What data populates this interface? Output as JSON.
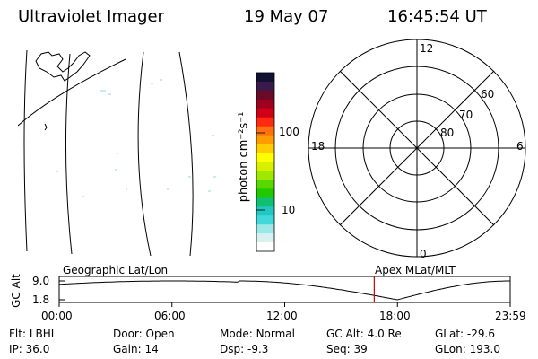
{
  "header": {
    "title": "Ultraviolet Imager",
    "date": "19 May 07",
    "time": "16:45:54 UT"
  },
  "colorbar": {
    "unit": "photon cm⁻²s⁻¹",
    "tick_labels": [
      "100",
      "10"
    ],
    "colors": [
      "#111133",
      "#3a1a4a",
      "#6a0a2a",
      "#a00020",
      "#d00018",
      "#ff2a10",
      "#ff7010",
      "#ff9c00",
      "#ffcc00",
      "#ffff00",
      "#d8f000",
      "#a0e800",
      "#58d800",
      "#20c800",
      "#10c070",
      "#20c8c0",
      "#40d8d8",
      "#9ae8e8",
      "#d8f0f0",
      "#ffffff"
    ]
  },
  "map_labels": {
    "left": "Geographic Lat/Lon",
    "right": "Apex MLat/MLT"
  },
  "polar": {
    "mlt_labels": {
      "top": "12",
      "bottom": "0",
      "left": "18",
      "right": "6"
    },
    "lat_labels": [
      "60",
      "70",
      "80"
    ]
  },
  "orbit_plot": {
    "ylabel": "GC Alt",
    "y_ticks": [
      "9.0",
      "1.8"
    ],
    "x_ticks": [
      "00:00",
      "06:00",
      "12:00",
      "18:00",
      "23:59"
    ],
    "marker_time": "16:45:54",
    "marker_color": "#cc0000"
  },
  "status": {
    "row1": [
      {
        "key": "Flt:",
        "value": "LBHL"
      },
      {
        "key": "Door:",
        "value": "Open"
      },
      {
        "key": "Mode:",
        "value": "Normal"
      },
      {
        "key": "GC Alt:",
        "value": "4.0 Re"
      },
      {
        "key": "GLat:",
        "value": "-29.6"
      }
    ],
    "row2": [
      {
        "key": "IP:",
        "value": "36.0"
      },
      {
        "key": "Gain:",
        "value": "14"
      },
      {
        "key": "Dsp:",
        "value": "-9.3"
      },
      {
        "key": "Seq:",
        "value": "39"
      },
      {
        "key": "GLon:",
        "value": "193.0"
      }
    ]
  }
}
